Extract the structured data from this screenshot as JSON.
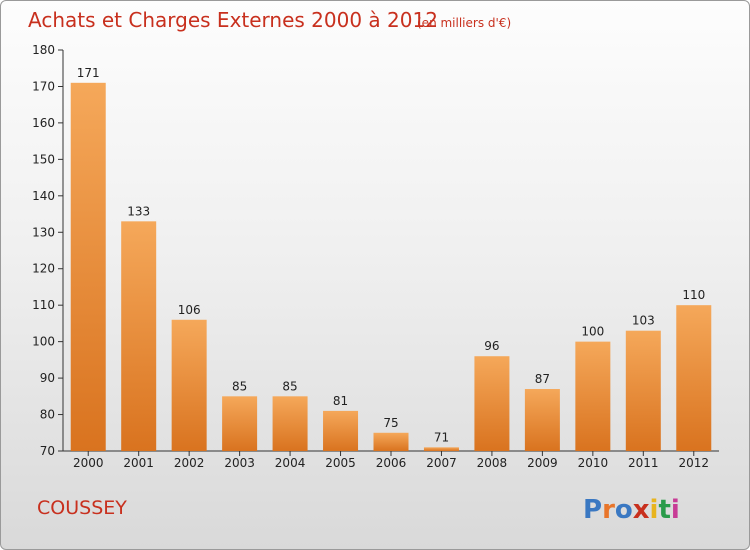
{
  "title": "Achats et Charges Externes 2000 à 2012",
  "subtitle": "(en milliers d'€)",
  "commune": "COUSSEY",
  "logo": {
    "text": "Proxiti",
    "letter_colors": [
      "#3a78c2",
      "#e8752a",
      "#3a78c2",
      "#c8301e",
      "#e8b41e",
      "#2a9b4a",
      "#c83c96"
    ]
  },
  "colors": {
    "bar_light": "#f5a85a",
    "bar_dark": "#d9731f",
    "title": "#c8301e",
    "axis": "#333333"
  },
  "chart_data": {
    "type": "bar",
    "categories": [
      "2000",
      "2001",
      "2002",
      "2003",
      "2004",
      "2005",
      "2006",
      "2007",
      "2008",
      "2009",
      "2010",
      "2011",
      "2012"
    ],
    "values": [
      171,
      133,
      106,
      85,
      85,
      81,
      75,
      71,
      96,
      87,
      100,
      103,
      110
    ],
    "ylim": [
      70,
      180
    ],
    "yticks": [
      70,
      80,
      90,
      100,
      110,
      120,
      130,
      140,
      150,
      160,
      170,
      180
    ],
    "grid": false,
    "legend": "none"
  }
}
